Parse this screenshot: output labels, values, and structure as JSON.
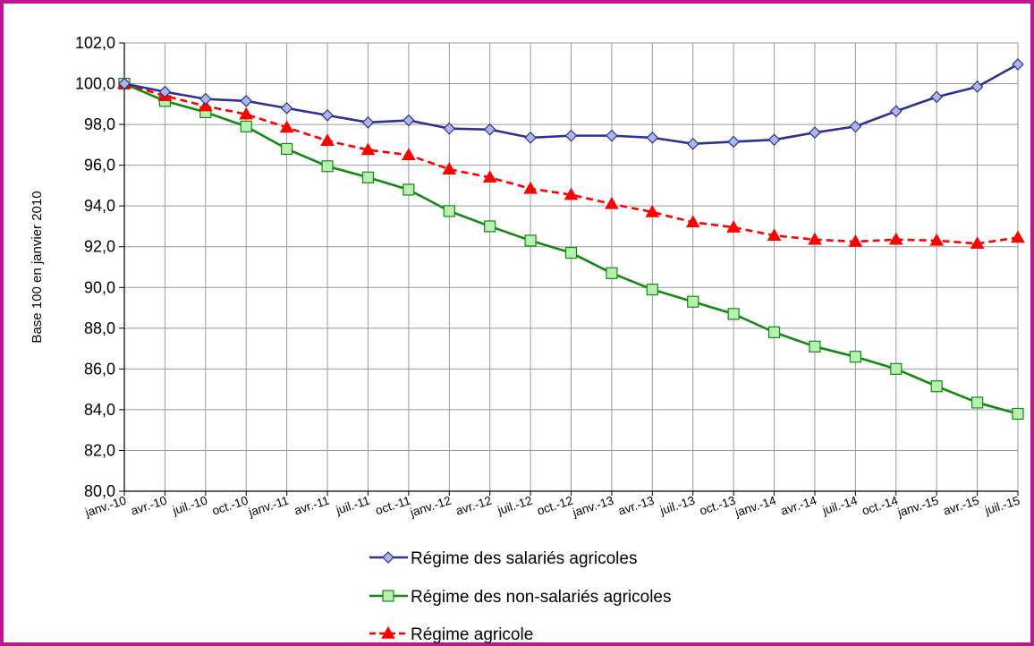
{
  "chart_data": {
    "type": "line",
    "title": "",
    "xlabel": "",
    "ylabel": "Base 100 en janvier 2010",
    "ylim": [
      80,
      102
    ],
    "yticks": [
      "80,0",
      "82,0",
      "84,0",
      "86,0",
      "88,0",
      "90,0",
      "92,0",
      "94,0",
      "96,0",
      "98,0",
      "100,0",
      "102,0"
    ],
    "grid": true,
    "legend_position": "bottom",
    "categories": [
      "janv.-10",
      "avr.-10",
      "juil.-10",
      "oct.-10",
      "janv.-11",
      "avr.-11",
      "juil.-11",
      "oct.-11",
      "janv.-12",
      "avr.-12",
      "juil.-12",
      "oct.-12",
      "janv.-13",
      "avr.-13",
      "juil.-13",
      "oct.-13",
      "janv.-14",
      "avr.-14",
      "juil.-14",
      "oct.-14",
      "janv.-15",
      "avr.-15",
      "juil.-15"
    ],
    "series": [
      {
        "name": "Régime des salariés agricoles",
        "color": "#2e3192",
        "marker": "diamond",
        "marker_fill": "#a9b8e8",
        "dash": "solid",
        "values": [
          100.0,
          99.6,
          99.25,
          99.15,
          98.8,
          98.45,
          98.1,
          98.2,
          97.8,
          97.75,
          97.35,
          97.45,
          97.45,
          97.35,
          97.05,
          97.15,
          97.25,
          97.6,
          97.9,
          98.65,
          99.35,
          99.85,
          100.95
        ]
      },
      {
        "name": "Régime des non-salariés agricoles",
        "color": "#128a12",
        "marker": "square",
        "marker_fill": "#b7f0b0",
        "dash": "solid",
        "values": [
          100.0,
          99.15,
          98.6,
          97.9,
          96.8,
          95.95,
          95.4,
          94.8,
          93.75,
          93.0,
          92.3,
          91.7,
          90.7,
          89.9,
          89.3,
          88.7,
          87.8,
          87.1,
          86.6,
          86.0,
          85.15,
          84.35,
          83.8
        ]
      },
      {
        "name": "Régime agricole",
        "color": "#ff0000",
        "marker": "triangle",
        "marker_fill": "#ff0000",
        "dash": "dashed",
        "values": [
          100.0,
          99.4,
          98.9,
          98.5,
          97.85,
          97.2,
          96.75,
          96.5,
          95.8,
          95.4,
          94.85,
          94.55,
          94.1,
          93.7,
          93.2,
          92.95,
          92.55,
          92.35,
          92.25,
          92.35,
          92.3,
          92.15,
          92.45
        ]
      }
    ]
  }
}
